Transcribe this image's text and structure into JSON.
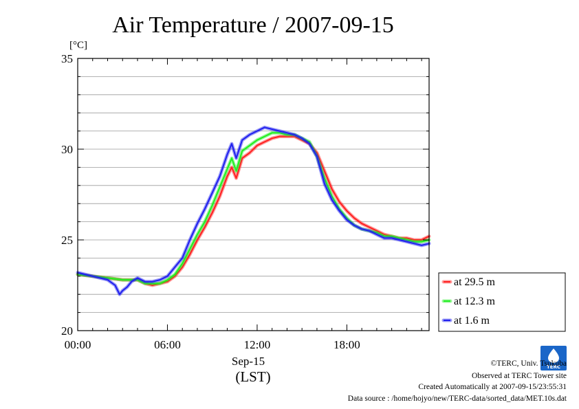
{
  "title": "Air Temperature / 2007-09-15",
  "chart_data": {
    "type": "line",
    "title": "Air Temperature / 2007-09-15",
    "ylabel": "[°C]",
    "xlabel": "(LST)",
    "date_label": "Sep-15",
    "xlim": [
      0,
      23.5
    ],
    "ylim": [
      20,
      35
    ],
    "x_ticks": [
      {
        "value": 0,
        "label": "00:00"
      },
      {
        "value": 6,
        "label": "06:00"
      },
      {
        "value": 12,
        "label": "12:00"
      },
      {
        "value": 18,
        "label": "18:00"
      }
    ],
    "y_ticks": [
      {
        "value": 20,
        "label": "20"
      },
      {
        "value": 25,
        "label": "25"
      },
      {
        "value": 30,
        "label": "30"
      },
      {
        "value": 35,
        "label": "35"
      }
    ],
    "grid": true,
    "legend_position": "right",
    "series": [
      {
        "name": "at 29.5 m",
        "color": "#ff2020",
        "x": [
          0,
          1,
          2,
          3,
          4,
          4.5,
          5,
          5.5,
          6,
          6.5,
          7,
          7.5,
          8,
          8.5,
          9,
          9.5,
          10,
          10.3,
          10.6,
          11,
          11.5,
          12,
          12.5,
          13,
          13.5,
          14,
          14.5,
          15,
          15.5,
          16,
          16.5,
          17,
          17.5,
          18,
          18.5,
          19,
          19.5,
          20,
          20.5,
          21,
          21.5,
          22,
          22.5,
          23,
          23.5
        ],
        "values": [
          23.1,
          23.0,
          22.9,
          22.8,
          22.8,
          22.6,
          22.5,
          22.6,
          22.7,
          23.0,
          23.5,
          24.2,
          25.0,
          25.7,
          26.5,
          27.4,
          28.5,
          29.0,
          28.4,
          29.5,
          29.8,
          30.2,
          30.4,
          30.6,
          30.7,
          30.7,
          30.7,
          30.5,
          30.3,
          29.8,
          28.8,
          27.8,
          27.1,
          26.6,
          26.2,
          25.9,
          25.7,
          25.5,
          25.3,
          25.2,
          25.1,
          25.1,
          25.0,
          25.0,
          25.2
        ]
      },
      {
        "name": "at 12.3 m",
        "color": "#20ee20",
        "x": [
          0,
          1,
          2,
          3,
          4,
          4.5,
          5,
          5.5,
          6,
          6.5,
          7,
          7.5,
          8,
          8.5,
          9,
          9.5,
          10,
          10.3,
          10.6,
          11,
          11.5,
          12,
          12.5,
          13,
          13.5,
          14,
          14.5,
          15,
          15.5,
          16,
          16.5,
          17,
          17.5,
          18,
          18.5,
          19,
          19.5,
          20,
          20.5,
          21,
          21.5,
          22,
          22.5,
          23,
          23.5
        ],
        "values": [
          23.1,
          23.0,
          22.9,
          22.8,
          22.8,
          22.6,
          22.6,
          22.6,
          22.8,
          23.1,
          23.7,
          24.5,
          25.3,
          26.0,
          26.9,
          27.9,
          28.9,
          29.5,
          28.8,
          29.9,
          30.2,
          30.5,
          30.7,
          30.9,
          30.9,
          30.8,
          30.8,
          30.6,
          30.4,
          29.6,
          28.4,
          27.4,
          26.7,
          26.2,
          25.8,
          25.6,
          25.5,
          25.4,
          25.2,
          25.2,
          25.1,
          25.0,
          24.9,
          24.9,
          25.0
        ]
      },
      {
        "name": "at 1.6 m",
        "color": "#2020ee",
        "x": [
          0,
          1,
          2,
          2.5,
          2.8,
          3,
          3.3,
          3.6,
          4,
          4.5,
          5,
          5.5,
          6,
          6.5,
          7,
          7.5,
          8,
          8.5,
          9,
          9.5,
          10,
          10.3,
          10.6,
          11,
          11.5,
          12,
          12.5,
          13,
          13.5,
          14,
          14.5,
          15,
          15.5,
          16,
          16.5,
          17,
          17.5,
          18,
          18.5,
          19,
          19.5,
          20,
          20.5,
          21,
          21.5,
          22,
          22.5,
          23,
          23.5
        ],
        "values": [
          23.2,
          23.0,
          22.8,
          22.5,
          22.0,
          22.2,
          22.4,
          22.7,
          22.9,
          22.7,
          22.7,
          22.8,
          23.0,
          23.5,
          24.0,
          25.0,
          25.9,
          26.7,
          27.6,
          28.5,
          29.7,
          30.3,
          29.5,
          30.5,
          30.8,
          31.0,
          31.2,
          31.1,
          31.0,
          30.9,
          30.8,
          30.6,
          30.3,
          29.6,
          28.1,
          27.2,
          26.6,
          26.1,
          25.8,
          25.6,
          25.5,
          25.3,
          25.1,
          25.1,
          25.0,
          24.9,
          24.8,
          24.7,
          24.8
        ]
      }
    ]
  },
  "footer": {
    "credit": "©TERC, Univ. Tsukuba",
    "observed": "Observed at TERC Tower site",
    "created": "Created Automatically at 2007-09-15/23:55:31",
    "source": "Data source : /home/hojyo/new/TERC-data/sorted_data/MET.10s.dat"
  },
  "logo": {
    "text": "TERC",
    "color": "#1a66c8"
  }
}
